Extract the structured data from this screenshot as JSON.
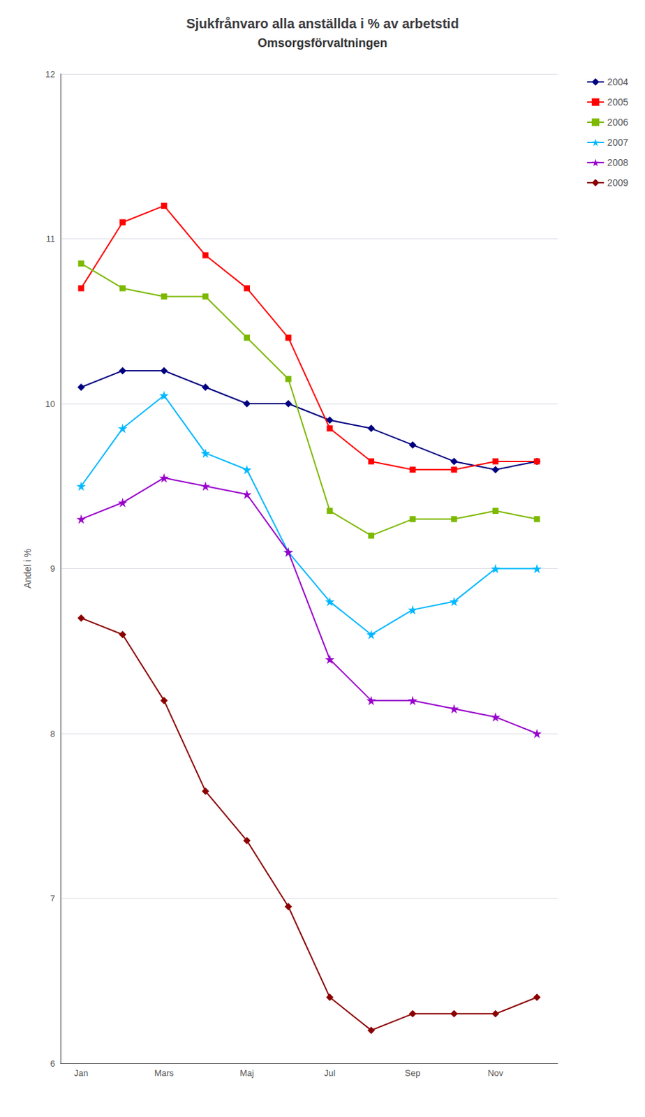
{
  "chart_data": {
    "type": "line",
    "title": "Sjukfrånvaro alla anställda i % av arbetstid",
    "subtitle": "Omsorgsförvaltningen",
    "ylabel": "Andel i %",
    "categories": [
      "Jan",
      null,
      "Mars",
      null,
      "Maj",
      null,
      "Jul",
      null,
      "Sep",
      null,
      "Nov",
      null
    ],
    "series": [
      {
        "name": "2004",
        "color": "#000080",
        "marker": "diamond",
        "values": [
          10.1,
          10.2,
          10.2,
          10.1,
          10.0,
          10.0,
          9.9,
          9.85,
          9.75,
          9.65,
          9.6,
          9.65
        ]
      },
      {
        "name": "2005",
        "color": "#ff0000",
        "marker": "square",
        "values": [
          10.7,
          11.1,
          11.2,
          10.9,
          10.7,
          10.4,
          9.85,
          9.65,
          9.6,
          9.6,
          9.65,
          9.65
        ]
      },
      {
        "name": "2006",
        "color": "#7cb900",
        "marker": "square",
        "values": [
          10.85,
          10.7,
          10.65,
          10.65,
          10.4,
          10.15,
          9.35,
          9.2,
          9.3,
          9.3,
          9.35,
          9.3
        ]
      },
      {
        "name": "2007",
        "color": "#00b8ff",
        "marker": "star",
        "values": [
          9.5,
          9.85,
          10.05,
          9.7,
          9.6,
          9.1,
          8.8,
          8.6,
          8.75,
          8.8,
          9.0,
          9.0
        ]
      },
      {
        "name": "2008",
        "color": "#9900cc",
        "marker": "star",
        "values": [
          9.3,
          9.4,
          9.55,
          9.5,
          9.45,
          9.1,
          8.45,
          8.2,
          8.2,
          8.15,
          8.1,
          8.0
        ]
      },
      {
        "name": "2009",
        "color": "#8b0000",
        "marker": "diamond",
        "values": [
          8.7,
          8.6,
          8.2,
          7.65,
          7.35,
          6.95,
          6.4,
          6.2,
          6.3,
          6.3,
          6.3,
          6.4
        ]
      }
    ],
    "ylim": [
      6,
      12
    ],
    "yticks": [
      6,
      7,
      8,
      9,
      10,
      11,
      12
    ],
    "grid": true,
    "legend": "upper right"
  }
}
